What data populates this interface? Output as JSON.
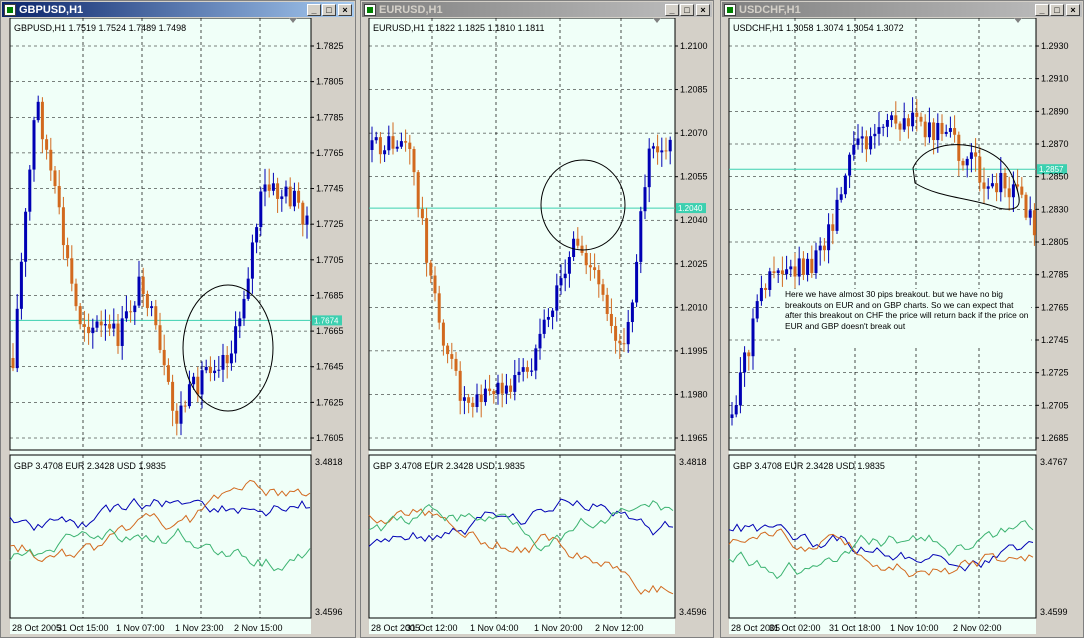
{
  "windows": [
    {
      "title": "GBPUSD,H1",
      "active": true,
      "header": "GBPUSD,H1  1.7519 1.7524 1.7489 1.7498",
      "yticks": [
        "1.7825",
        "1.7805",
        "1.7785",
        "1.7765",
        "1.7745",
        "1.7725",
        "1.7705",
        "1.7685",
        "1.7665",
        "1.7645",
        "1.7625",
        "1.7605"
      ],
      "hline_label": "1.7674",
      "ind_header": "GBP 3.4708   EUR 2.3428   USD 1.9835",
      "ind_ticks": [
        "3.4818",
        "3.4596"
      ],
      "xticks": [
        "28 Oct 2005",
        "31 Oct 15:00",
        "1 Nov 07:00",
        "1 Nov 23:00",
        "2 Nov 15:00"
      ]
    },
    {
      "title": "EURUSD,H1",
      "active": false,
      "header": "EURUSD,H1  1.1822 1.1825 1.1810 1.1811",
      "yticks": [
        "1.2100",
        "1.2085",
        "1.2070",
        "1.2055",
        "1.2040",
        "1.2025",
        "1.2010",
        "1.1995",
        "1.1980",
        "1.1965"
      ],
      "hline_label": "1.2040",
      "ind_header": "GBP 3.4708   EUR 2.3428   USD 1.9835",
      "ind_ticks": [
        "3.4818",
        "3.4596"
      ],
      "xticks": [
        "28 Oct 2005",
        "31 Oct 12:00",
        "1 Nov 04:00",
        "1 Nov 20:00",
        "2 Nov 12:00"
      ]
    },
    {
      "title": "USDCHF,H1",
      "active": false,
      "header": "USDCHF,H1  1.3058 1.3074 1.3054 1.3072",
      "yticks": [
        "1.2930",
        "1.2910",
        "1.2890",
        "1.2870",
        "1.2850",
        "1.2830",
        "1.2805",
        "1.2785",
        "1.2765",
        "1.2745",
        "1.2725",
        "1.2705",
        "1.2685"
      ],
      "hline_label": "1.2857",
      "ind_header": "GBP 3.4708   EUR 2.3428   USD 1.9835",
      "ind_ticks": [
        "3.4767",
        "3.4599"
      ],
      "xticks": [
        "28 Oct 2005",
        "31 Oct 02:00",
        "31 Oct 18:00",
        "1 Nov 10:00",
        "2 Nov 02:00"
      ]
    }
  ],
  "annotation": "Here we have almost 30 pips breakout. but we have no big breakouts on EUR and on GBP charts.  So we can expect that after this breakout on CHF the price will return back if the price on EUR and GBP doesn't break out",
  "colors": {
    "bg": "#f0fff8",
    "bull": "#0000b4",
    "bear": "#d2691e",
    "line": "#3cb371",
    "chart_up": "#000080"
  }
}
